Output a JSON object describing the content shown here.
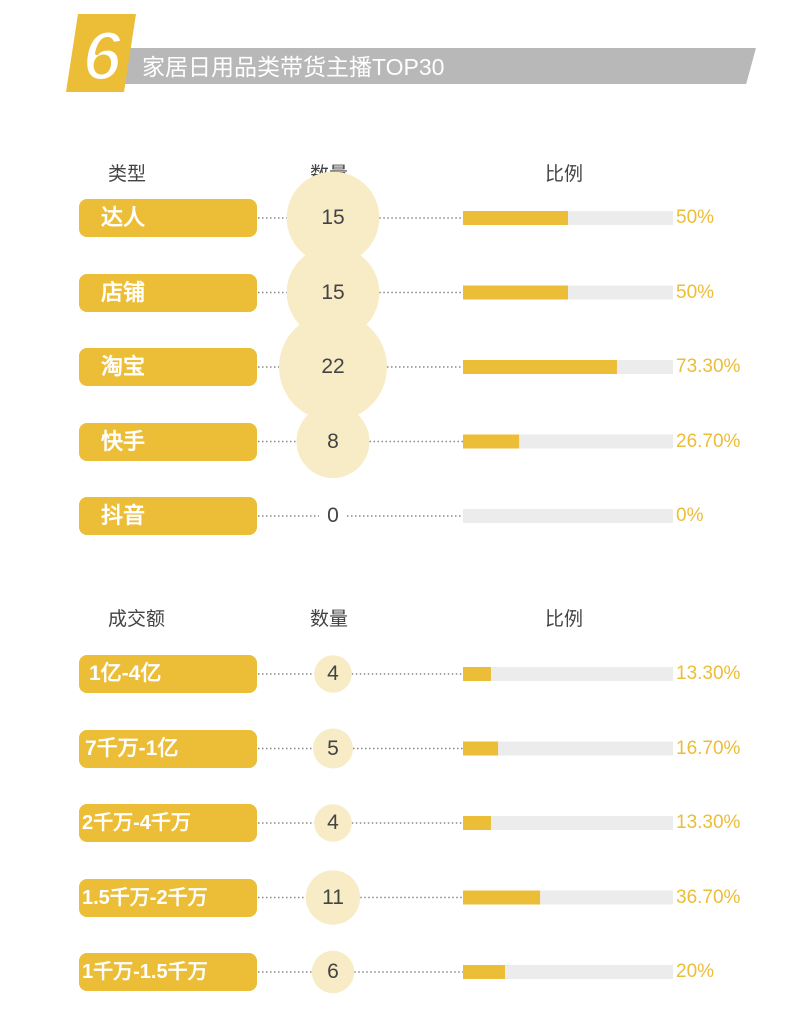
{
  "header": {
    "badge_number": "6",
    "title": "家居日用品类带货主播TOP30"
  },
  "colors": {
    "accent": "#ecbd36",
    "bubble": "#f8ecc6",
    "track": "#ececec",
    "header_bar": "#b8b8b8",
    "text": "#444444"
  },
  "sections": [
    {
      "headers": {
        "category": "类型",
        "count": "数量",
        "ratio": "比例"
      }
    },
    {
      "headers": {
        "category": "成交额",
        "count": "数量",
        "ratio": "比例"
      }
    }
  ],
  "chart_data": [
    {
      "type": "bar",
      "category_header": "类型",
      "categories": [
        "达人",
        "店铺",
        "淘宝",
        "快手",
        "抖音"
      ],
      "counts": [
        15,
        15,
        22,
        8,
        0
      ],
      "percent_labels": [
        "50%",
        "50%",
        "73.30%",
        "26.70%",
        "0%"
      ],
      "values": [
        50,
        50,
        73.3,
        26.7,
        0
      ],
      "ylim": [
        0,
        100
      ]
    },
    {
      "type": "bar",
      "category_header": "成交额",
      "categories": [
        "1亿-4亿",
        "7千万-1亿",
        "2千万-4千万",
        "1.5千万-2千万",
        "1千万-1.5千万"
      ],
      "counts": [
        4,
        5,
        4,
        11,
        6
      ],
      "percent_labels": [
        "13.30%",
        "16.70%",
        "13.30%",
        "36.70%",
        "20%"
      ],
      "values": [
        13.3,
        16.7,
        13.3,
        36.7,
        20
      ],
      "ylim": [
        0,
        100
      ]
    }
  ]
}
